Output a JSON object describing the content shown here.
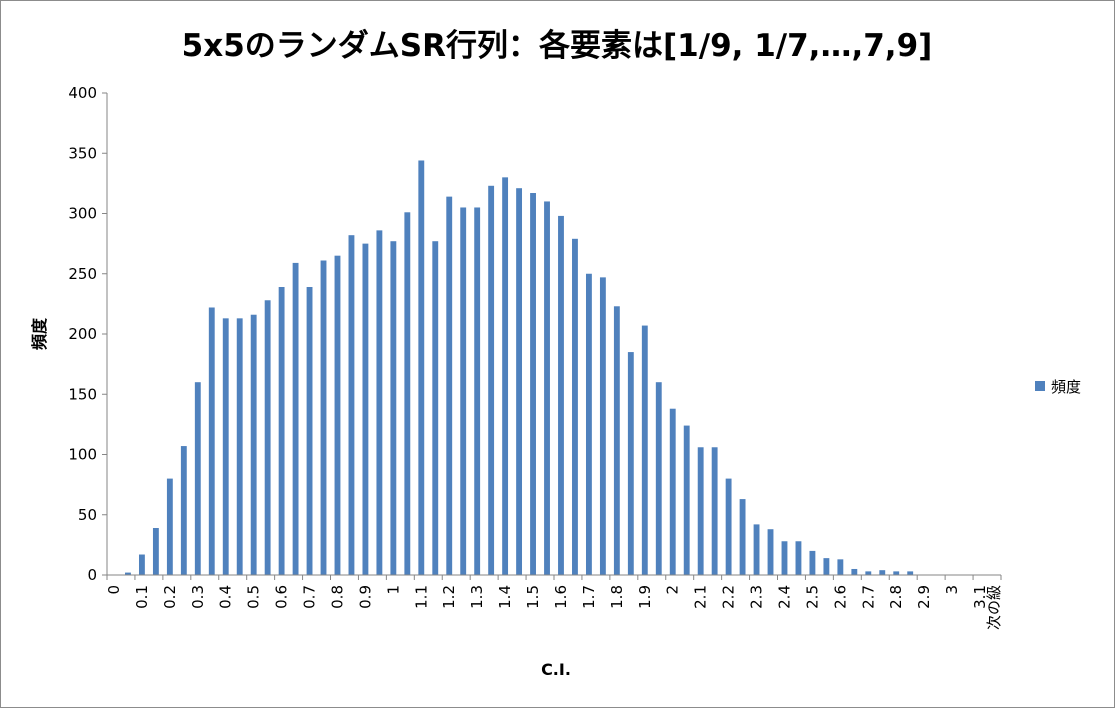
{
  "chart_data": {
    "type": "bar",
    "title": "5x5のランダムSR行列：各要素は[1/9, 1/7,…,7,9]",
    "xlabel": "C.I.",
    "ylabel": "頻度",
    "legend": {
      "position": "right",
      "entries": [
        "頻度"
      ]
    },
    "grid": false,
    "ylim": [
      0,
      400
    ],
    "yticks": [
      0,
      50,
      100,
      150,
      200,
      250,
      300,
      350,
      400
    ],
    "bar_color": "#4f81bd",
    "categories": [
      "0",
      "0.05",
      "0.1",
      "0.15",
      "0.2",
      "0.25",
      "0.3",
      "0.35",
      "0.4",
      "0.45",
      "0.5",
      "0.55",
      "0.6",
      "0.65",
      "0.7",
      "0.75",
      "0.8",
      "0.85",
      "0.9",
      "0.95",
      "1",
      "1.05",
      "1.1",
      "1.15",
      "1.2",
      "1.25",
      "1.3",
      "1.35",
      "1.4",
      "1.45",
      "1.5",
      "1.55",
      "1.6",
      "1.65",
      "1.7",
      "1.75",
      "1.8",
      "1.85",
      "1.9",
      "1.95",
      "2",
      "2.05",
      "2.1",
      "2.15",
      "2.2",
      "2.25",
      "2.3",
      "2.35",
      "2.4",
      "2.45",
      "2.5",
      "2.55",
      "2.6",
      "2.65",
      "2.7",
      "2.75",
      "2.8",
      "2.85",
      "2.9",
      "2.95",
      "3",
      "3.05",
      "3.1",
      "次の級"
    ],
    "tick_labels": [
      "0",
      "",
      "0.1",
      "",
      "0.2",
      "",
      "0.3",
      "",
      "0.4",
      "",
      "0.5",
      "",
      "0.6",
      "",
      "0.7",
      "",
      "0.8",
      "",
      "0.9",
      "",
      "1",
      "",
      "1.1",
      "",
      "1.2",
      "",
      "1.3",
      "",
      "1.4",
      "",
      "1.5",
      "",
      "1.6",
      "",
      "1.7",
      "",
      "1.8",
      "",
      "1.9",
      "",
      "2",
      "",
      "2.1",
      "",
      "2.2",
      "",
      "2.3",
      "",
      "2.4",
      "",
      "2.5",
      "",
      "2.6",
      "",
      "2.7",
      "",
      "2.8",
      "",
      "2.9",
      "",
      "3",
      "",
      "3.1",
      "次の級"
    ],
    "series": [
      {
        "name": "頻度",
        "values": [
          0,
          2,
          17,
          39,
          80,
          107,
          160,
          222,
          213,
          213,
          216,
          228,
          239,
          259,
          239,
          261,
          265,
          282,
          275,
          286,
          277,
          301,
          344,
          277,
          314,
          305,
          305,
          323,
          330,
          321,
          317,
          310,
          298,
          279,
          250,
          247,
          223,
          185,
          207,
          160,
          138,
          124,
          106,
          106,
          80,
          63,
          42,
          38,
          28,
          28,
          20,
          14,
          13,
          5,
          3,
          4,
          3,
          3,
          0,
          0,
          0,
          0,
          0,
          0
        ]
      }
    ]
  }
}
